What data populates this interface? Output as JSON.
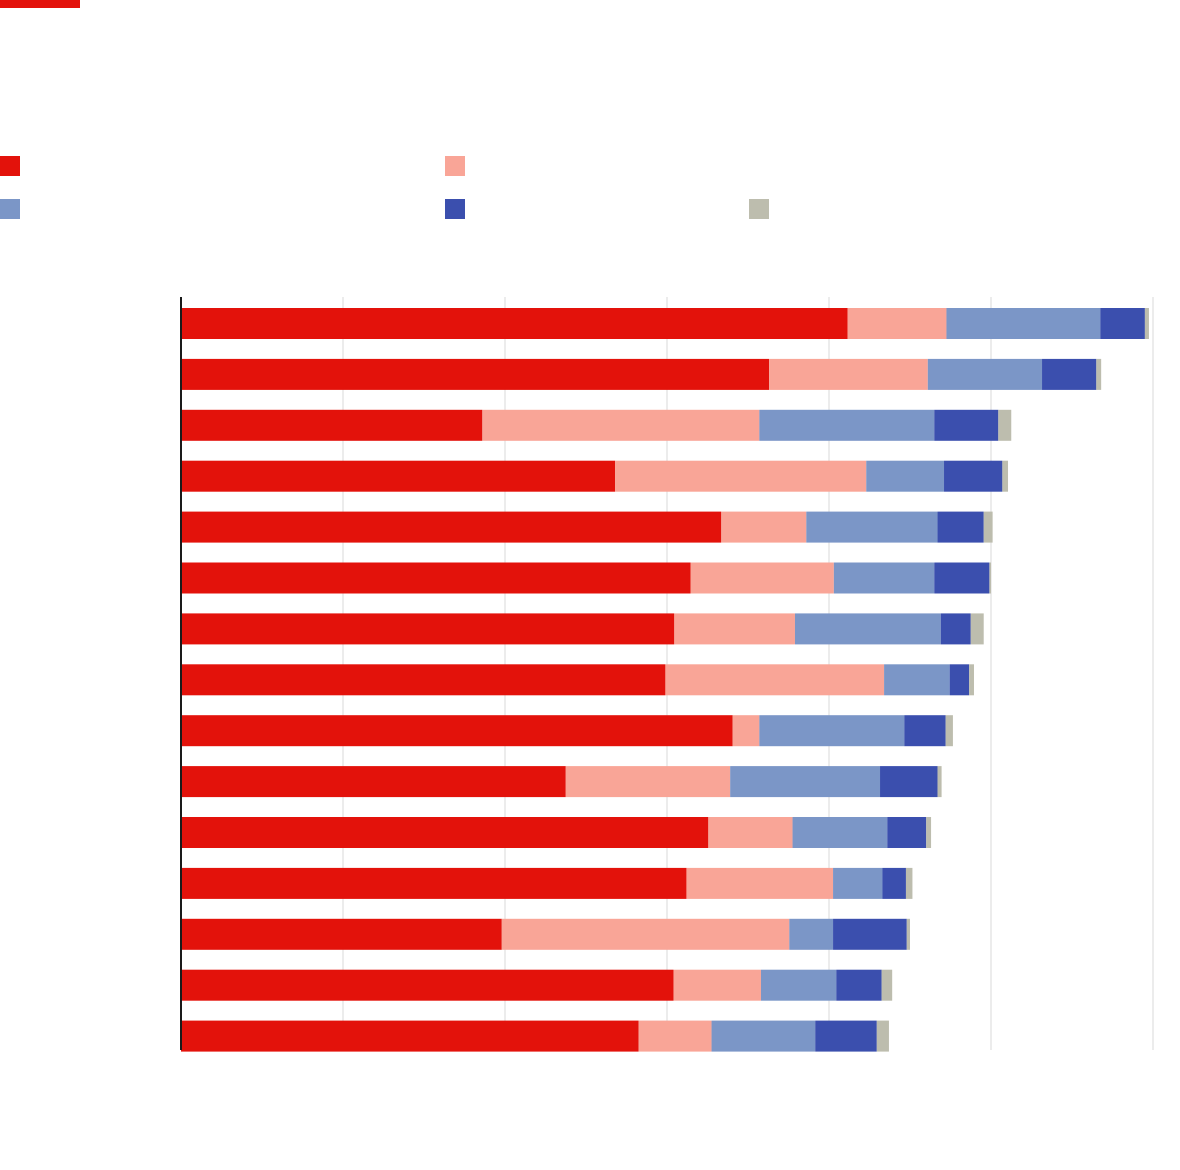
{
  "colors": {
    "accent": "#e3120b",
    "grid": "#d9d9d9",
    "axis": "#1a1a1a"
  },
  "legend": [
    {
      "color": "#e3120b",
      "label": ""
    },
    {
      "color": "#f9a597",
      "label": ""
    },
    {
      "color": "#7b96c7",
      "label": ""
    },
    {
      "color": "#3b4fae",
      "label": ""
    },
    {
      "color": "#bdbdae",
      "label": ""
    }
  ],
  "chart_data": {
    "type": "bar",
    "orientation": "horizontal",
    "stacked": true,
    "title": "",
    "xlabel": "",
    "ylabel": "",
    "xlim": [
      0,
      120
    ],
    "grid": true,
    "legend_position": "top",
    "categories": [
      "",
      "",
      "",
      "",
      "",
      "",
      "",
      "",
      "",
      "",
      "",
      "",
      "",
      "",
      ""
    ],
    "series": [
      {
        "color": "#e3120b",
        "values": [
          82.3,
          72.6,
          37.2,
          53.6,
          66.7,
          62.9,
          60.9,
          59.8,
          68.1,
          47.5,
          65.1,
          62.4,
          39.6,
          60.8,
          56.5
        ]
      },
      {
        "color": "#f9a597",
        "values": [
          12.2,
          19.6,
          34.2,
          31.0,
          10.5,
          17.7,
          14.9,
          27.0,
          3.3,
          20.3,
          10.4,
          18.1,
          35.5,
          10.8,
          9.0
        ]
      },
      {
        "color": "#7b96c7",
        "values": [
          19.0,
          14.1,
          21.6,
          9.6,
          16.2,
          12.4,
          18.0,
          8.1,
          17.9,
          18.5,
          11.7,
          6.1,
          5.4,
          9.3,
          12.8
        ]
      },
      {
        "color": "#3b4fae",
        "values": [
          5.5,
          6.7,
          7.9,
          7.2,
          5.7,
          6.8,
          3.7,
          2.4,
          5.1,
          7.1,
          4.8,
          2.9,
          9.1,
          5.6,
          7.6
        ]
      },
      {
        "color": "#bdbdae",
        "values": [
          0.5,
          0.6,
          1.6,
          0.7,
          1.1,
          0.2,
          1.6,
          0.6,
          0.9,
          0.5,
          0.6,
          0.8,
          0.4,
          1.3,
          1.5
        ]
      }
    ]
  }
}
